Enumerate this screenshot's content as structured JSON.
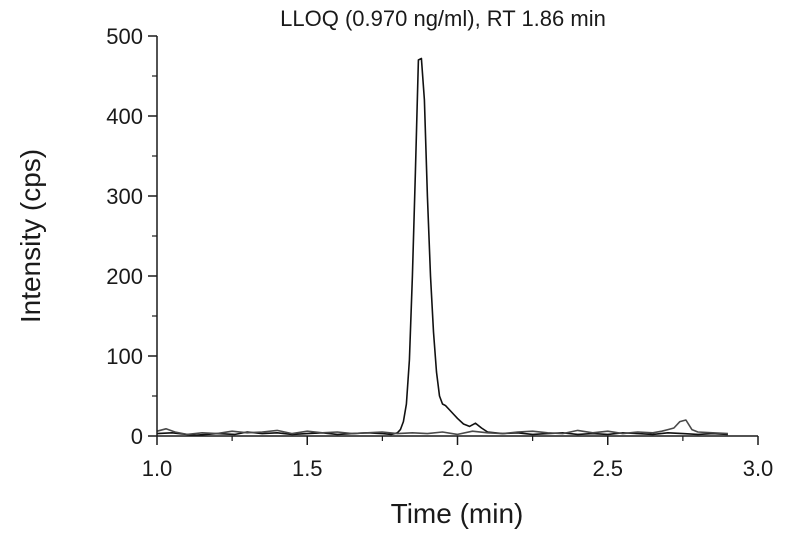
{
  "chart_data": {
    "type": "line",
    "title": "LLOQ (0.970 ng/ml), RT 1.86 min",
    "xlabel": "Time (min)",
    "ylabel": "Intensity (cps)",
    "xlim": [
      1.0,
      3.0
    ],
    "ylim": [
      0,
      500
    ],
    "x_ticks": [
      "1.0",
      "1.5",
      "2.0",
      "2.5",
      "3.0"
    ],
    "y_ticks": [
      "0",
      "100",
      "200",
      "300",
      "400",
      "500"
    ],
    "grid": false,
    "legend": "none",
    "colors": {
      "series_a": "#111111",
      "series_b": "#4a4a4a",
      "axes": "#1a1a1a"
    },
    "series": [
      {
        "x": [
          1.0,
          1.05,
          1.1,
          1.13,
          1.2,
          1.26,
          1.3,
          1.35,
          1.4,
          1.45,
          1.5,
          1.55,
          1.6,
          1.65,
          1.7,
          1.75,
          1.78,
          1.8,
          1.81,
          1.82,
          1.83,
          1.84,
          1.85,
          1.86,
          1.87,
          1.88,
          1.89,
          1.9,
          1.91,
          1.92,
          1.93,
          1.94,
          1.95,
          1.96,
          1.98,
          2.0,
          2.02,
          2.04,
          2.06,
          2.08,
          2.1,
          2.15,
          2.2,
          2.25,
          2.3,
          2.35,
          2.4,
          2.45,
          2.5,
          2.55,
          2.6,
          2.65,
          2.7,
          2.75,
          2.8,
          2.85,
          2.9
        ],
        "values": [
          3,
          4,
          2,
          1,
          3,
          2,
          5,
          3,
          4,
          2,
          3,
          4,
          2,
          3,
          4,
          3,
          2,
          4,
          8,
          18,
          40,
          95,
          200,
          330,
          470,
          472,
          420,
          300,
          200,
          130,
          80,
          50,
          40,
          38,
          30,
          22,
          15,
          12,
          16,
          10,
          5,
          3,
          4,
          2,
          3,
          4,
          2,
          3,
          2,
          4,
          3,
          2,
          4,
          3,
          2,
          3,
          2
        ]
      },
      {
        "x": [
          1.0,
          1.03,
          1.06,
          1.1,
          1.15,
          1.2,
          1.25,
          1.3,
          1.35,
          1.4,
          1.45,
          1.5,
          1.55,
          1.6,
          1.65,
          1.7,
          1.75,
          1.8,
          1.85,
          1.9,
          1.95,
          2.0,
          2.05,
          2.1,
          2.15,
          2.2,
          2.25,
          2.3,
          2.35,
          2.4,
          2.45,
          2.5,
          2.55,
          2.6,
          2.65,
          2.68,
          2.7,
          2.72,
          2.74,
          2.76,
          2.78,
          2.8,
          2.85,
          2.9
        ],
        "values": [
          6,
          9,
          5,
          2,
          4,
          3,
          6,
          4,
          5,
          7,
          3,
          6,
          4,
          5,
          3,
          4,
          5,
          3,
          4,
          3,
          5,
          2,
          6,
          4,
          3,
          5,
          6,
          4,
          3,
          7,
          4,
          6,
          3,
          5,
          4,
          6,
          8,
          10,
          18,
          20,
          8,
          5,
          4,
          3
        ]
      }
    ]
  }
}
